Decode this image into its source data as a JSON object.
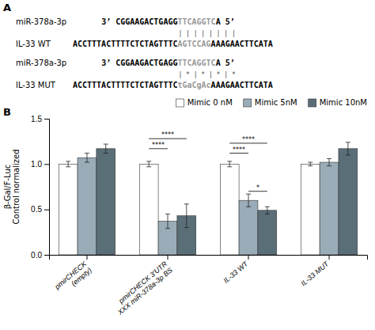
{
  "chart_data": [
    {
      "type": "text",
      "title": "A",
      "annotations": [
        {
          "label": "miR-378a-3p",
          "segments": [
            "3’ CGGAAGACTGAGG",
            "TTCAGGTC",
            "A 5’"
          ]
        },
        {
          "marks": "| | | | | | | |"
        },
        {
          "label": "IL-33 WT",
          "segments": [
            "ACCTTTACTTTTCTCTAGTTTC",
            "AGTCCAG",
            "AAAGAACTTCATA"
          ]
        },
        {
          "label": "miR-378a-3p",
          "segments": [
            "3’ CGGAAGACTGAGG",
            "TTCAGGTC",
            "A 5’"
          ]
        },
        {
          "marks": "| * | * | * | *"
        },
        {
          "label": "IL-33 MUT",
          "segments": [
            "ACCTTTACTTTTCTCTAGTTTC",
            "tGaCgAc",
            "AAAGAACTTCATA"
          ]
        }
      ]
    },
    {
      "type": "bar",
      "title": "B",
      "categories": [
        "pmirCHECK\n(empty)",
        "pmirCHECK 3'UTR\nXXX miR-378a-3p BS",
        "IL-33 WT",
        "IL-33 MUT"
      ],
      "series": [
        {
          "name": "Mimic 0 nM",
          "color": "#ffffff",
          "values": [
            1.0,
            1.0,
            1.0,
            1.0
          ],
          "errors": [
            0.03,
            0.03,
            0.03,
            0.02
          ]
        },
        {
          "name": "Mimic 5nM",
          "color": "#9aacb8",
          "values": [
            1.07,
            0.37,
            0.6,
            1.02
          ],
          "errors": [
            0.05,
            0.08,
            0.07,
            0.04
          ]
        },
        {
          "name": "Mimic 10nM",
          "color": "#5a6e78",
          "values": [
            1.17,
            0.43,
            0.49,
            1.17
          ],
          "errors": [
            0.05,
            0.13,
            0.04,
            0.07
          ]
        }
      ],
      "y_label": "β-Gal/F-Luc\nControl normalized",
      "ylim": [
        0.0,
        1.5
      ],
      "yticks": [
        {
          "value": 0.0,
          "label": "0.0"
        },
        0.5,
        {
          "value": 1.0,
          "label": "1.0"
        },
        1.5
      ],
      "grid": false,
      "legend": "upper-right",
      "annotations": [
        {
          "text": "****",
          "category": "pmirCHECK 3'UTR\nXXX miR-378a-3p BS",
          "from": "Mimic 0 nM",
          "to": "Mimic 5nM",
          "y": 1.17
        },
        {
          "text": "****",
          "category": "pmirCHECK 3'UTR\nXXX miR-378a-3p BS",
          "from": "Mimic 0 nM",
          "to": "Mimic 10nM",
          "y": 1.28
        },
        {
          "text": "****",
          "category": "IL-33 WT",
          "from": "Mimic 0 nM",
          "to": "Mimic 5nM",
          "y": 1.12
        },
        {
          "text": "****",
          "category": "IL-33 WT",
          "from": "Mimic 0 nM",
          "to": "Mimic 10nM",
          "y": 1.23
        },
        {
          "text": "*",
          "category": "IL-33 WT",
          "from": "Mimic 5nM",
          "to": "Mimic 10nM",
          "y": 0.7
        }
      ]
    }
  ]
}
